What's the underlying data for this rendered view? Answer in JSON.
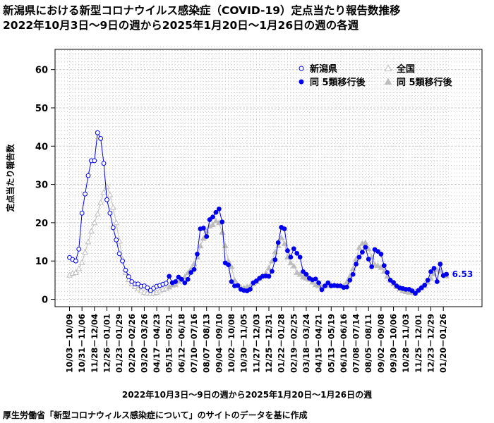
{
  "title": "新潟県における新型コロナウイルス感染症（COVID-19）定点当たり報告数推移",
  "subtitle": "2022年10月3日～9日の週から2025年1月20日～1月26日の週の各週",
  "source_note": "厚生労働省「新型コロナウィルス感染症について」のサイトのデータを基に作成",
  "colors": {
    "niigata": "#0000ee",
    "national": "#bdbdbd",
    "grid": "#c8c8c8"
  },
  "chart_data": {
    "type": "line",
    "title": "新潟県における新型コロナウイルス感染症（COVID-19）定点当たり報告数推移",
    "xlabel": "2022年10月3日～9日の週から2025年1月20日～1月26日の週",
    "ylabel": "定点当たり報告数",
    "ylim": [
      0,
      65
    ],
    "yticks": [
      0,
      10,
      20,
      30,
      40,
      50,
      60
    ],
    "grid": true,
    "legend_position": "top-right",
    "legend": {
      "niigata": "新潟県",
      "national": "全国",
      "niigata_post": "同 5類移行後",
      "national_post": "同 5類移行後"
    },
    "last_value_label": "6.53",
    "x_tick_labels": [
      "10/03－10/09",
      "10/31－11/06",
      "11/28－12/04",
      "12/26－01/01",
      "01/23－01/29",
      "02/20－02/26",
      "03/20－03/26",
      "04/17－04/23",
      "05/15－05/21",
      "06/12－06/18",
      "07/10－07/16",
      "08/07－08/13",
      "09/04－09/10",
      "10/02－10/08",
      "10/30－11/05",
      "11/27－12/03",
      "12/25－12/31",
      "01/22－01/28",
      "02/19－02/25",
      "03/18－03/24",
      "04/15－04/21",
      "05/13－05/19",
      "06/10－06/16",
      "07/08－07/14",
      "08/05－08/11",
      "09/02－09/08",
      "09/30－10/06",
      "10/28－11/03",
      "11/25－12/01",
      "12/23－12/29",
      "01/20－01/26"
    ],
    "x_tick_every": 4,
    "transition_index": 32,
    "series": [
      {
        "name": "新潟県",
        "values": [
          10.9,
          10.4,
          10.0,
          13.1,
          22.5,
          27.5,
          32.3,
          36.2,
          36.2,
          43.5,
          42.0,
          35.5,
          26.0,
          22.5,
          18.7,
          15.5,
          11.9,
          10.0,
          7.6,
          5.9,
          4.6,
          4.0,
          4.0,
          3.4,
          3.5,
          3.0,
          2.3,
          2.9,
          3.4,
          3.6,
          3.9,
          4.2,
          6.0,
          4.3,
          4.6,
          5.8,
          5.2,
          4.3,
          5.2,
          7.0,
          7.8,
          11.8,
          18.4,
          18.6,
          16.4,
          20.8,
          21.5,
          22.7,
          23.6,
          20.2,
          9.5,
          9.0,
          4.6,
          3.5,
          3.6,
          2.6,
          2.3,
          2.2,
          2.6,
          4.3,
          4.8,
          5.5,
          6.0,
          6.1,
          6.0,
          7.3,
          10.3,
          14.8,
          18.8,
          18.4,
          12.7,
          11.0,
          13.2,
          12.0,
          11.0,
          7.2,
          6.5,
          5.5,
          5.1,
          5.3,
          4.3,
          2.5,
          3.5,
          4.3,
          3.5,
          3.6,
          3.5,
          3.5,
          3.1,
          3.2,
          5.0,
          6.5,
          9.2,
          11.0,
          12.3,
          13.6,
          10.5,
          8.5,
          13.0,
          12.5,
          11.8,
          8.8,
          7.0,
          5.0,
          4.4,
          3.5,
          3.0,
          2.8,
          2.6,
          2.6,
          2.2,
          1.5,
          2.3,
          3.0,
          3.7,
          5.0,
          7.2,
          8.1,
          4.6,
          9.2,
          6.2,
          6.53
        ]
      },
      {
        "name": "全国",
        "values": [
          6.3,
          6.8,
          7.0,
          8.0,
          9.6,
          12.3,
          15.0,
          17.8,
          20.0,
          22.3,
          25.3,
          27.9,
          29.5,
          27.3,
          24.0,
          20.0,
          15.2,
          10.5,
          7.0,
          5.1,
          4.0,
          3.3,
          2.7,
          2.2,
          1.8,
          1.6,
          1.5,
          1.6,
          1.8,
          2.2,
          2.6,
          2.8,
          3.2,
          3.7,
          3.9,
          4.7,
          5.2,
          5.8,
          6.9,
          7.9,
          9.3,
          11.0,
          13.9,
          15.9,
          17.8,
          19.1,
          19.5,
          20.5,
          20.0,
          17.5,
          14.0,
          10.0,
          8.5,
          5.0,
          3.6,
          3.2,
          3.0,
          3.3,
          3.5,
          4.0,
          4.6,
          5.4,
          6.1,
          6.8,
          8.2,
          10.0,
          12.4,
          14.0,
          16.1,
          14.5,
          11.0,
          9.5,
          8.7,
          7.0,
          6.5,
          5.8,
          5.5,
          5.2,
          4.5,
          3.8,
          3.5,
          3.3,
          3.5,
          3.6,
          3.7,
          3.7,
          3.6,
          3.5,
          3.5,
          4.5,
          6.0,
          8.0,
          10.5,
          13.5,
          14.6,
          14.8,
          13.2,
          11.0,
          9.1,
          8.8,
          8.3,
          7.3,
          6.0,
          5.0,
          4.0,
          3.3,
          2.7,
          2.2,
          2.0,
          1.8,
          1.8,
          2.0,
          2.5,
          3.0,
          3.5,
          4.5,
          5.5,
          6.7,
          7.8,
          7.4,
          6.5,
          6.1
        ]
      }
    ]
  }
}
